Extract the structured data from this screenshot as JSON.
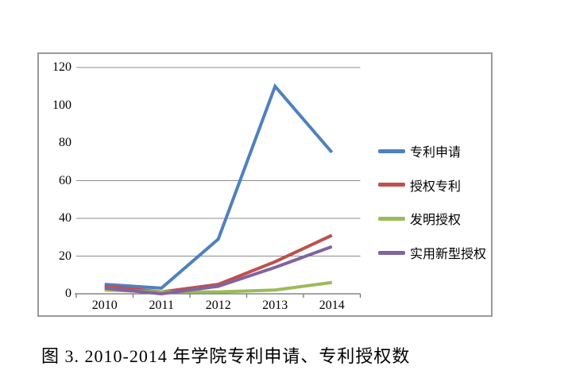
{
  "figure_caption": "图 3. 2010-2014 年学院专利申请、专利授权数",
  "chart_data": {
    "type": "line",
    "title": "",
    "xlabel": "",
    "ylabel": "",
    "categories": [
      "2010",
      "2011",
      "2012",
      "2013",
      "2014"
    ],
    "series": [
      {
        "name": "专利申请",
        "color": "#4F81BD",
        "values": [
          5,
          3,
          29,
          110,
          75
        ]
      },
      {
        "name": "授权专利",
        "color": "#C0504D",
        "values": [
          4,
          1,
          5,
          17,
          31
        ]
      },
      {
        "name": "发明授权",
        "color": "#9BBB59",
        "values": [
          2,
          1,
          1,
          2,
          6
        ]
      },
      {
        "name": "实用新型授权",
        "color": "#8064A2",
        "values": [
          3,
          0,
          4,
          14,
          25
        ]
      }
    ],
    "ylim": [
      0,
      120
    ],
    "y_ticks": [
      0,
      20,
      40,
      60,
      80,
      100,
      120
    ],
    "gridline_values": [
      20,
      40,
      60,
      120
    ],
    "grid": true,
    "legend_position": "right"
  },
  "style": {
    "frame_border_color": "#9a9a9a",
    "gridline_color": "#8c8c8c",
    "axis_color": "#6e6e6e",
    "text_color": "#000000",
    "background": "#ffffff"
  }
}
